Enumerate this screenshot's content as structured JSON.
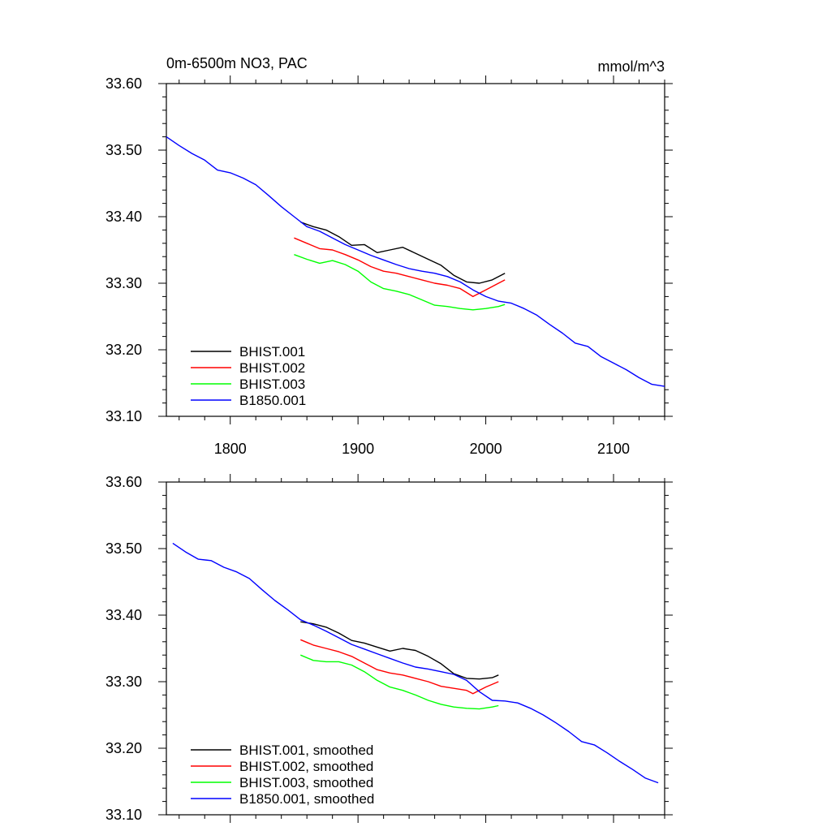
{
  "chart_data": [
    {
      "type": "line",
      "title": "0m-6500m NO3, PAC",
      "units": "mmol/m^3",
      "xlim": [
        1750,
        2140
      ],
      "ylim": [
        33.1,
        33.6
      ],
      "yticks": [
        "33.10",
        "33.20",
        "33.30",
        "33.40",
        "33.50",
        "33.60"
      ],
      "xticks": [
        "1800",
        "1900",
        "2000",
        "2100"
      ],
      "legend_position": "lower-left",
      "series": [
        {
          "name": "BHIST.001",
          "color": "#000000",
          "x": [
            1855,
            1865,
            1875,
            1885,
            1895,
            1905,
            1915,
            1925,
            1935,
            1945,
            1955,
            1965,
            1975,
            1985,
            1995,
            2005,
            2015
          ],
          "y": [
            33.392,
            33.385,
            33.38,
            33.37,
            33.357,
            33.358,
            33.346,
            33.35,
            33.354,
            33.345,
            33.336,
            33.327,
            33.312,
            33.302,
            33.3,
            33.305,
            33.315
          ]
        },
        {
          "name": "BHIST.002",
          "color": "#ff0000",
          "x": [
            1850,
            1860,
            1870,
            1880,
            1890,
            1900,
            1910,
            1920,
            1930,
            1940,
            1950,
            1960,
            1970,
            1980,
            1990,
            2000,
            2010,
            2015
          ],
          "y": [
            33.368,
            33.36,
            33.352,
            33.35,
            33.343,
            33.335,
            33.325,
            33.318,
            33.315,
            33.31,
            33.305,
            33.3,
            33.297,
            33.292,
            33.28,
            33.29,
            33.3,
            33.305
          ]
        },
        {
          "name": "BHIST.003",
          "color": "#00ff00",
          "x": [
            1850,
            1860,
            1870,
            1880,
            1890,
            1900,
            1910,
            1920,
            1930,
            1940,
            1950,
            1960,
            1970,
            1980,
            1990,
            2000,
            2010,
            2015
          ],
          "y": [
            33.343,
            33.336,
            33.33,
            33.334,
            33.328,
            33.318,
            33.302,
            33.292,
            33.288,
            33.283,
            33.275,
            33.267,
            33.265,
            33.262,
            33.26,
            33.262,
            33.265,
            33.268
          ]
        },
        {
          "name": "B1850.001",
          "color": "#0000ff",
          "x": [
            1750,
            1760,
            1770,
            1780,
            1790,
            1800,
            1810,
            1820,
            1830,
            1840,
            1850,
            1860,
            1870,
            1880,
            1890,
            1900,
            1910,
            1920,
            1930,
            1940,
            1950,
            1960,
            1970,
            1980,
            1990,
            2000,
            2010,
            2020,
            2030,
            2040,
            2050,
            2060,
            2070,
            2080,
            2090,
            2100,
            2110,
            2120,
            2130,
            2140
          ],
          "y": [
            33.52,
            33.507,
            33.495,
            33.485,
            33.47,
            33.466,
            33.458,
            33.448,
            33.432,
            33.415,
            33.4,
            33.385,
            33.378,
            33.368,
            33.358,
            33.35,
            33.342,
            33.335,
            33.328,
            33.322,
            33.318,
            33.315,
            33.31,
            33.302,
            33.29,
            33.28,
            33.273,
            33.27,
            33.262,
            33.252,
            33.238,
            33.225,
            33.21,
            33.205,
            33.19,
            33.18,
            33.17,
            33.158,
            33.148,
            33.145
          ]
        }
      ]
    },
    {
      "type": "line",
      "title": "",
      "xlim": [
        1750,
        2140
      ],
      "ylim": [
        33.1,
        33.6
      ],
      "yticks": [
        "33.10",
        "33.20",
        "33.30",
        "33.40",
        "33.50",
        "33.60"
      ],
      "legend_position": "lower-left",
      "series": [
        {
          "name": "BHIST.001, smoothed",
          "color": "#000000",
          "x": [
            1855,
            1865,
            1875,
            1885,
            1895,
            1905,
            1915,
            1925,
            1935,
            1945,
            1955,
            1965,
            1975,
            1985,
            1995,
            2005,
            2010
          ],
          "y": [
            33.39,
            33.387,
            33.382,
            33.373,
            33.362,
            33.358,
            33.352,
            33.346,
            33.35,
            33.347,
            33.338,
            33.327,
            33.312,
            33.305,
            33.304,
            33.306,
            33.31
          ]
        },
        {
          "name": "BHIST.002, smoothed",
          "color": "#ff0000",
          "x": [
            1855,
            1865,
            1875,
            1885,
            1895,
            1905,
            1915,
            1925,
            1935,
            1945,
            1955,
            1965,
            1975,
            1985,
            1990,
            2000,
            2010
          ],
          "y": [
            33.363,
            33.355,
            33.35,
            33.345,
            33.338,
            33.328,
            33.318,
            33.313,
            33.31,
            33.305,
            33.3,
            33.293,
            33.29,
            33.287,
            33.282,
            33.292,
            33.3
          ]
        },
        {
          "name": "BHIST.003, smoothed",
          "color": "#00ff00",
          "x": [
            1855,
            1865,
            1875,
            1885,
            1895,
            1905,
            1915,
            1925,
            1935,
            1945,
            1955,
            1965,
            1975,
            1985,
            1995,
            2005,
            2010
          ],
          "y": [
            33.34,
            33.332,
            33.33,
            33.33,
            33.325,
            33.315,
            33.302,
            33.292,
            33.287,
            33.28,
            33.272,
            33.266,
            33.262,
            33.26,
            33.259,
            33.262,
            33.264
          ]
        },
        {
          "name": "B1850.001, smoothed",
          "color": "#0000ff",
          "x": [
            1755,
            1765,
            1775,
            1785,
            1795,
            1805,
            1815,
            1825,
            1835,
            1845,
            1855,
            1865,
            1875,
            1885,
            1895,
            1905,
            1915,
            1925,
            1935,
            1945,
            1955,
            1965,
            1975,
            1985,
            1995,
            2005,
            2015,
            2025,
            2035,
            2045,
            2055,
            2065,
            2075,
            2085,
            2095,
            2105,
            2115,
            2125,
            2135
          ],
          "y": [
            33.508,
            33.495,
            33.484,
            33.482,
            33.472,
            33.465,
            33.455,
            33.438,
            33.422,
            33.408,
            33.393,
            33.385,
            33.376,
            33.366,
            33.356,
            33.349,
            33.342,
            33.335,
            33.328,
            33.322,
            33.319,
            33.315,
            33.311,
            33.302,
            33.285,
            33.272,
            33.271,
            33.268,
            33.26,
            33.25,
            33.238,
            33.225,
            33.21,
            33.205,
            33.193,
            33.18,
            33.168,
            33.155,
            33.148
          ]
        }
      ]
    }
  ]
}
